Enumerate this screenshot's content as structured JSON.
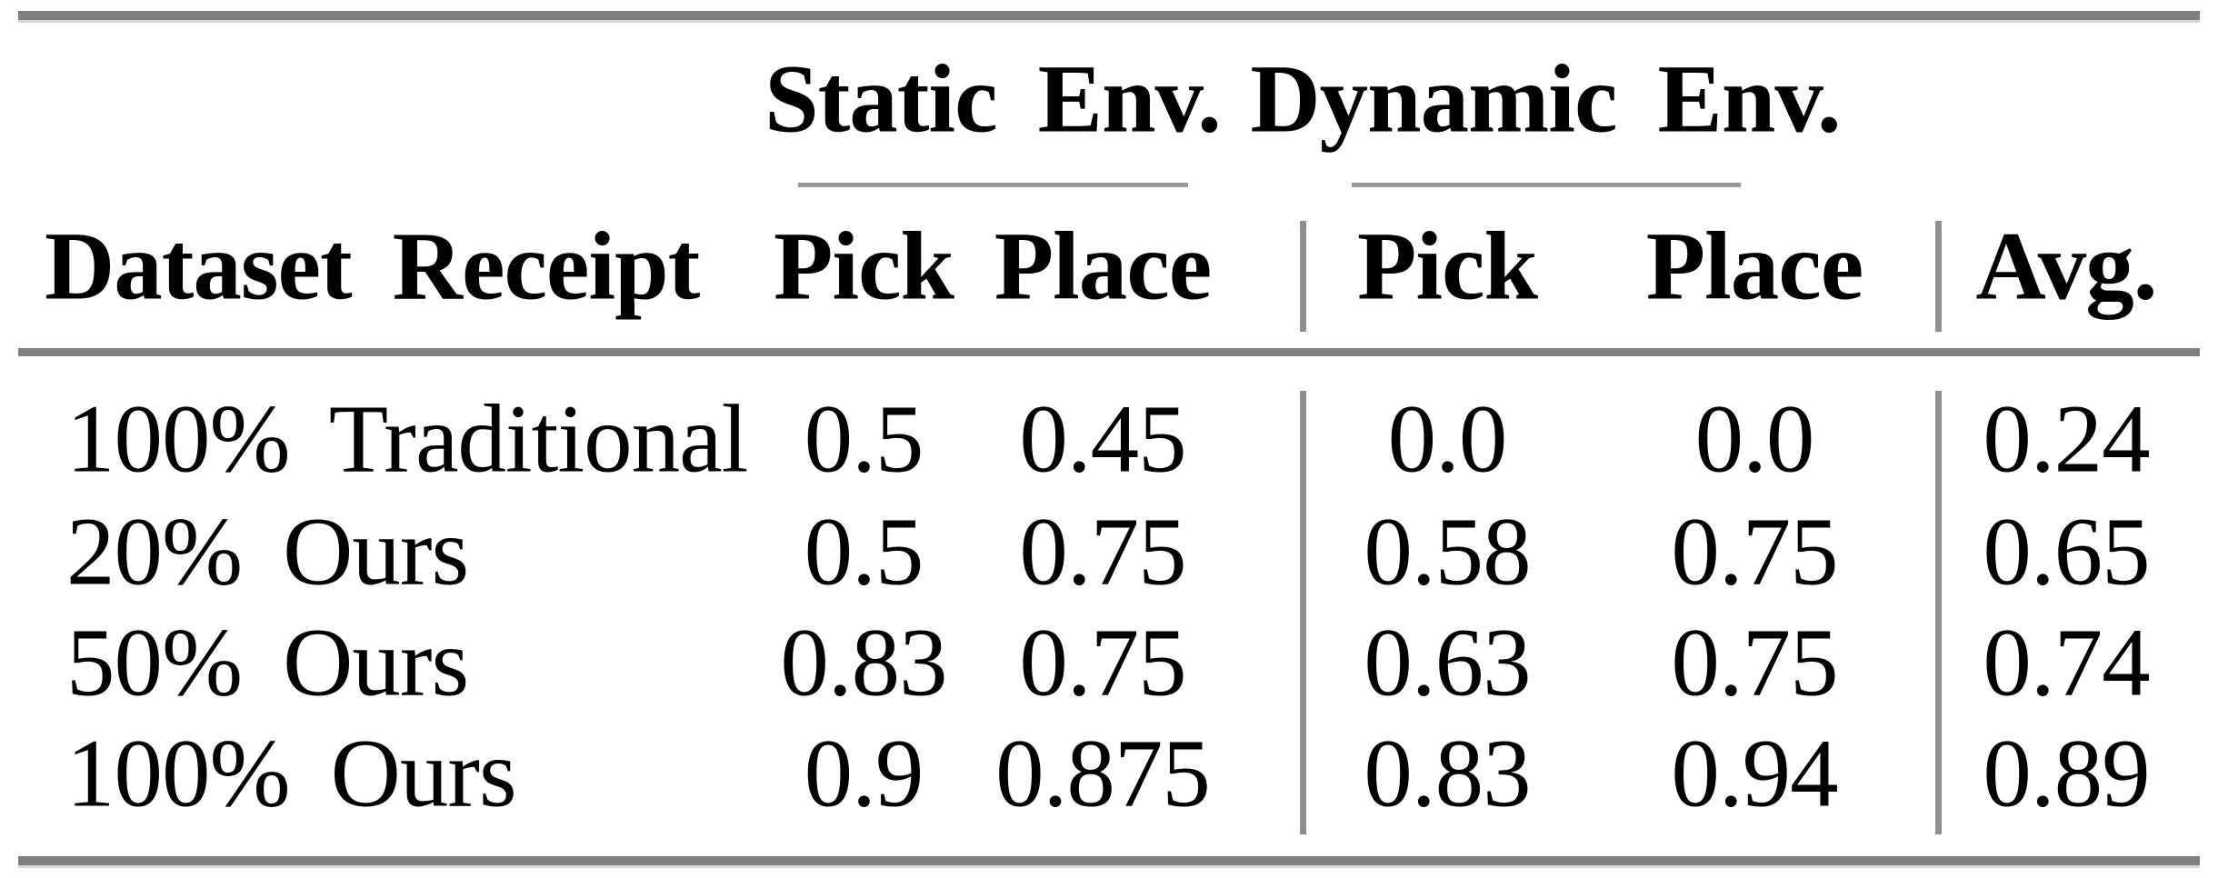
{
  "figure": {
    "rule_color": "#7f7f7f",
    "text_color": "#000000"
  },
  "table": {
    "corner_header": "Dataset Receipt",
    "groups": [
      {
        "label": "Static Env.",
        "columns": [
          "Pick",
          "Place"
        ]
      },
      {
        "label": "Dynamic Env.",
        "columns": [
          "Pick",
          "Place"
        ]
      }
    ],
    "avg_header": "Avg.",
    "rows": [
      {
        "label": "100% Traditional",
        "values": [
          "0.5",
          "0.45",
          "0.0",
          "0.0",
          "0.24"
        ]
      },
      {
        "label": "20% Ours",
        "values": [
          "0.5",
          "0.75",
          "0.58",
          "0.75",
          "0.65"
        ]
      },
      {
        "label": "50% Ours",
        "values": [
          "0.83",
          "0.75",
          "0.63",
          "0.75",
          "0.74"
        ]
      },
      {
        "label": "100% Ours",
        "values": [
          "0.9",
          "0.875",
          "0.83",
          "0.94",
          "0.89"
        ]
      }
    ]
  },
  "chart_data": {
    "type": "table",
    "columns": [
      "Dataset Receipt",
      "Static Env. Pick",
      "Static Env. Place",
      "Dynamic Env. Pick",
      "Dynamic Env. Place",
      "Avg."
    ],
    "rows": [
      [
        "100% Traditional",
        0.5,
        0.45,
        0.0,
        0.0,
        0.24
      ],
      [
        "20% Ours",
        0.5,
        0.75,
        0.58,
        0.75,
        0.65
      ],
      [
        "50% Ours",
        0.83,
        0.75,
        0.63,
        0.75,
        0.74
      ],
      [
        "100% Ours",
        0.9,
        0.875,
        0.83,
        0.94,
        0.89
      ]
    ]
  }
}
